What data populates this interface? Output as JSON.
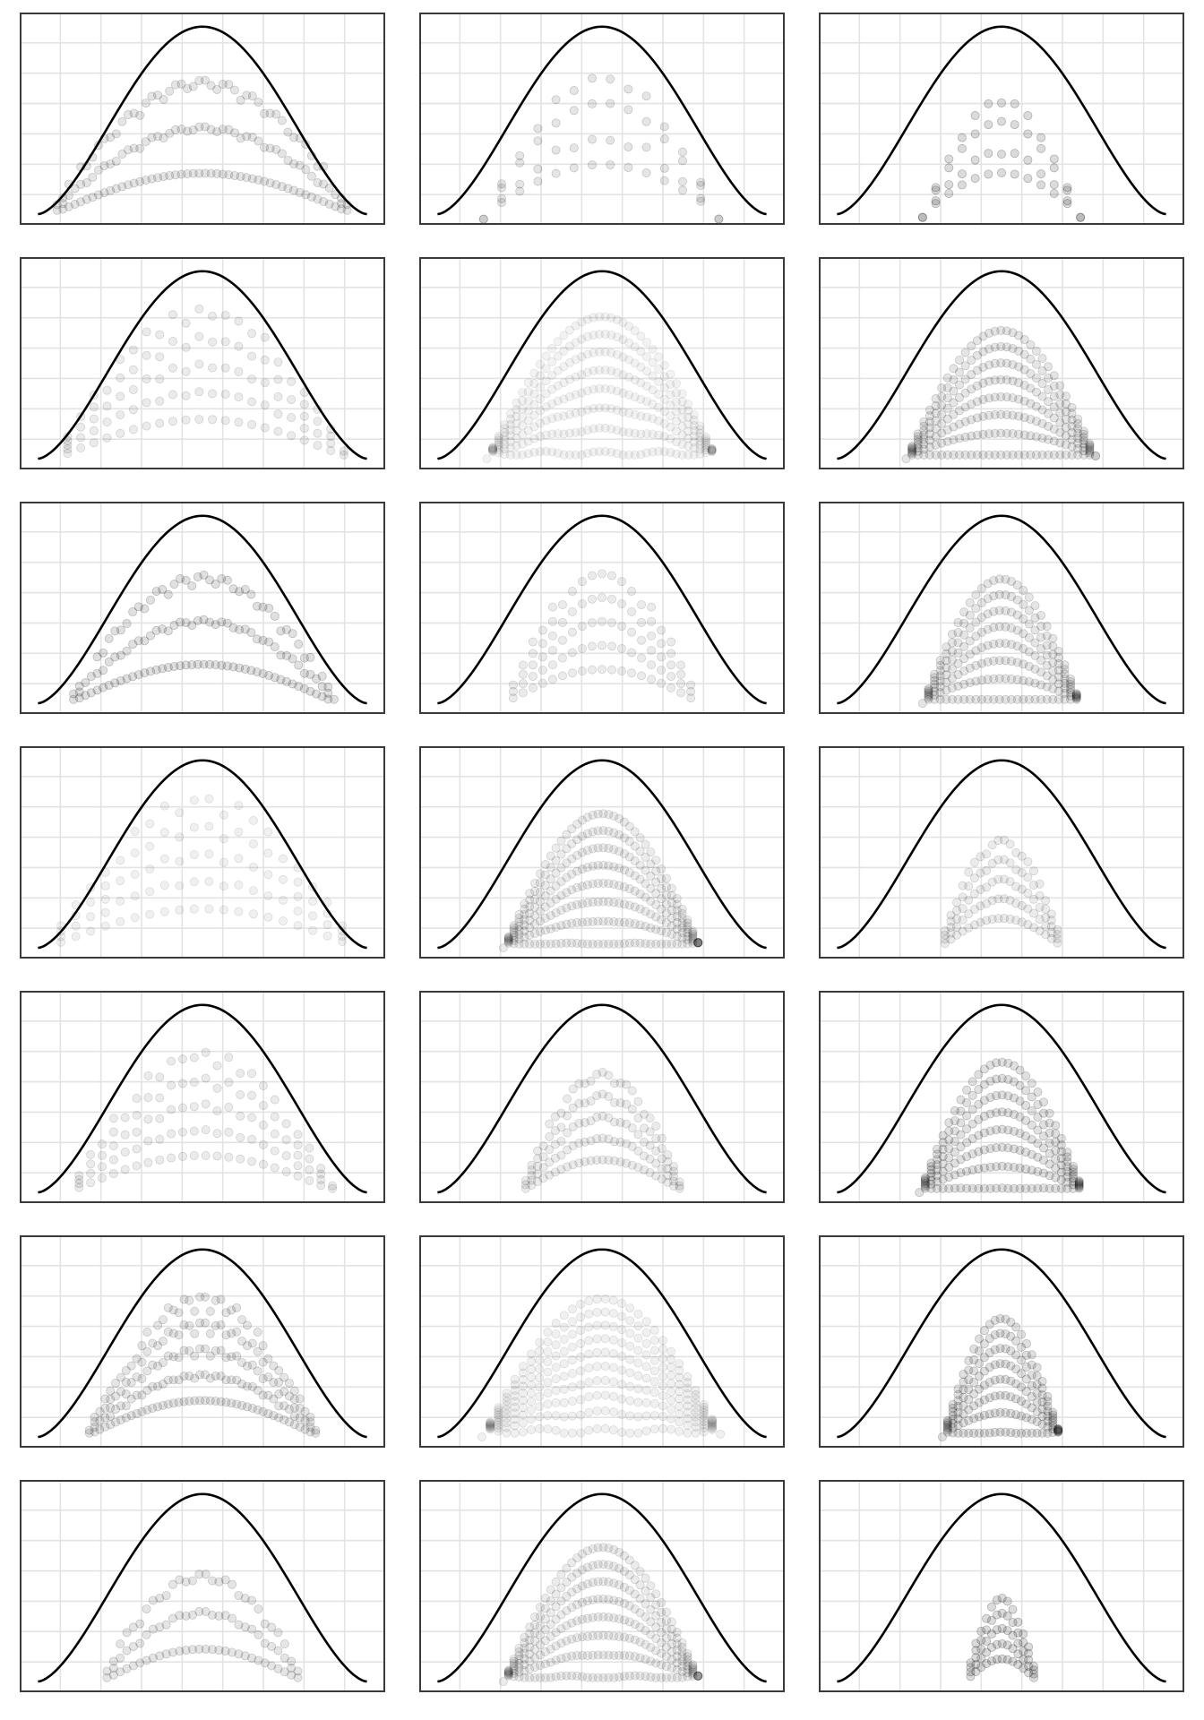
{
  "figure": {
    "rows": 7,
    "cols": 3
  },
  "style": {
    "background": "#ffffff",
    "panel_border": "#3a3a3a",
    "grid_color": "#e3e3e3",
    "curve_color": "#000000",
    "point_color": "#000000",
    "grid": true,
    "legend": "none"
  },
  "chart_data": [
    {
      "type": "scatter",
      "panel": "r1c1",
      "x": [],
      "y": [],
      "xlim": [
        0,
        1
      ],
      "ylim": [
        0,
        1
      ],
      "envelope": {
        "shape": "sine-arch",
        "peak": 0.95
      },
      "points": {
        "spread": 0.92,
        "height": 0.83,
        "cols": 13,
        "rows": 4,
        "step": 0.018,
        "arc_height": 0.22,
        "opacity": 0.1,
        "density": "light",
        "pattern": "arcs"
      }
    },
    {
      "type": "scatter",
      "panel": "r1c2",
      "x": [],
      "y": [],
      "xlim": [
        0,
        1
      ],
      "ylim": [
        0,
        1
      ],
      "envelope": {
        "shape": "sine-arch",
        "peak": 0.95
      },
      "points": {
        "spread": 0.72,
        "height": 0.72,
        "cols": 9,
        "rows": 4,
        "step": 0.055,
        "arc_height": 0.15,
        "opacity": 0.1,
        "density": "light",
        "pattern": "lattice"
      }
    },
    {
      "type": "scatter",
      "panel": "r1c3",
      "x": [],
      "y": [],
      "xlim": [
        0,
        1
      ],
      "ylim": [
        0,
        1
      ],
      "envelope": {
        "shape": "sine-arch",
        "peak": 0.95
      },
      "points": {
        "spread": 0.48,
        "height": 0.6,
        "cols": 9,
        "rows": 4,
        "step": 0.04,
        "arc_height": 0.12,
        "opacity": 0.14,
        "density": "medium",
        "pattern": "lattice"
      }
    },
    {
      "type": "scatter",
      "panel": "r2c1",
      "x": [],
      "y": [],
      "xlim": [
        0,
        1
      ],
      "ylim": [
        0,
        1
      ],
      "envelope": {
        "shape": "sine-arch",
        "peak": 0.95
      },
      "points": {
        "spread": 0.9,
        "height": 0.8,
        "cols": 11,
        "rows": 6,
        "step": 0.04,
        "arc_height": 0.26,
        "opacity": 0.08,
        "density": "light",
        "pattern": "arcs"
      }
    },
    {
      "type": "scatter",
      "panel": "r2c2",
      "x": [],
      "y": [],
      "xlim": [
        0,
        1
      ],
      "ylim": [
        0,
        1
      ],
      "envelope": {
        "shape": "sine-arch",
        "peak": 0.95
      },
      "points": {
        "spread": 0.7,
        "height": 0.72,
        "cols": 5,
        "rows": 8,
        "step": 0.018,
        "arc_height": 0.15,
        "opacity": 0.05,
        "density": "dense",
        "pattern": "filled"
      }
    },
    {
      "type": "scatter",
      "panel": "r2c3",
      "x": [],
      "y": [],
      "xlim": [
        0,
        1
      ],
      "ylim": [
        0,
        1
      ],
      "envelope": {
        "shape": "sine-arch",
        "peak": 0.95
      },
      "points": {
        "spread": 0.58,
        "height": 0.65,
        "cols": 6,
        "rows": 8,
        "step": 0.018,
        "arc_height": 0.08,
        "opacity": 0.1,
        "density": "solid",
        "pattern": "filled"
      }
    },
    {
      "type": "scatter",
      "panel": "r3c1",
      "x": [],
      "y": [],
      "xlim": [
        0,
        1
      ],
      "ylim": [
        0,
        1
      ],
      "envelope": {
        "shape": "sine-arch",
        "peak": 0.95
      },
      "points": {
        "spread": 0.82,
        "height": 0.79,
        "cols": 13,
        "rows": 4,
        "step": 0.018,
        "arc_height": 0.22,
        "opacity": 0.12,
        "density": "light",
        "pattern": "arcs"
      }
    },
    {
      "type": "scatter",
      "panel": "r3c2",
      "x": [],
      "y": [],
      "xlim": [
        0,
        1
      ],
      "ylim": [
        0,
        1
      ],
      "envelope": {
        "shape": "sine-arch",
        "peak": 0.95
      },
      "points": {
        "spread": 0.6,
        "height": 0.69,
        "cols": 3,
        "rows": 6,
        "step": 0.03,
        "arc_height": 0.22,
        "opacity": 0.08,
        "density": "light",
        "pattern": "arcs"
      }
    },
    {
      "type": "scatter",
      "panel": "r3c3",
      "x": [],
      "y": [],
      "xlim": [
        0,
        1
      ],
      "ylim": [
        0,
        1
      ],
      "envelope": {
        "shape": "sine-arch",
        "peak": 0.95
      },
      "points": {
        "spread": 0.48,
        "height": 0.63,
        "cols": 5,
        "rows": 8,
        "step": 0.018,
        "arc_height": 0.08,
        "opacity": 0.1,
        "density": "solid",
        "pattern": "filled"
      }
    },
    {
      "type": "scatter",
      "panel": "r4c1",
      "x": [],
      "y": [],
      "xlim": [
        0,
        1
      ],
      "ylim": [
        0,
        1
      ],
      "envelope": {
        "shape": "sine-arch",
        "peak": 0.95
      },
      "points": {
        "spread": 0.95,
        "height": 0.79,
        "cols": 9,
        "rows": 6,
        "step": 0.045,
        "arc_height": 0.3,
        "opacity": 0.06,
        "density": "light",
        "pattern": "arcs"
      }
    },
    {
      "type": "scatter",
      "panel": "r4c2",
      "x": [],
      "y": [],
      "xlim": [
        0,
        1
      ],
      "ylim": [
        0,
        1
      ],
      "envelope": {
        "shape": "sine-arch",
        "peak": 0.95
      },
      "points": {
        "spread": 0.6,
        "height": 0.68,
        "cols": 4,
        "rows": 8,
        "step": 0.016,
        "arc_height": 0.1,
        "opacity": 0.08,
        "density": "solid",
        "pattern": "filled"
      }
    },
    {
      "type": "scatter",
      "panel": "r4c3",
      "x": [],
      "y": [],
      "xlim": [
        0,
        1
      ],
      "ylim": [
        0,
        1
      ],
      "envelope": {
        "shape": "sine-arch",
        "peak": 0.95
      },
      "points": {
        "spread": 0.38,
        "height": 0.6,
        "cols": 5,
        "rows": 6,
        "step": 0.018,
        "arc_height": 0.12,
        "opacity": 0.08,
        "density": "medium",
        "pattern": "arcs"
      }
    },
    {
      "type": "scatter",
      "panel": "r5c1",
      "x": [],
      "y": [],
      "xlim": [
        0,
        1
      ],
      "ylim": [
        0,
        1
      ],
      "envelope": {
        "shape": "sine-arch",
        "peak": 0.95
      },
      "points": {
        "spread": 0.82,
        "height": 0.75,
        "cols": 11,
        "rows": 6,
        "step": 0.035,
        "arc_height": 0.24,
        "opacity": 0.08,
        "density": "light",
        "pattern": "arcs"
      }
    },
    {
      "type": "scatter",
      "panel": "r5c2",
      "x": [],
      "y": [],
      "xlim": [
        0,
        1
      ],
      "ylim": [
        0,
        1
      ],
      "envelope": {
        "shape": "sine-arch",
        "peak": 0.95
      },
      "points": {
        "spread": 0.5,
        "height": 0.66,
        "cols": 7,
        "rows": 6,
        "step": 0.018,
        "arc_height": 0.15,
        "opacity": 0.08,
        "density": "medium",
        "pattern": "arcs"
      }
    },
    {
      "type": "scatter",
      "panel": "r5c3",
      "x": [],
      "y": [],
      "xlim": [
        0,
        1
      ],
      "ylim": [
        0,
        1
      ],
      "envelope": {
        "shape": "sine-arch",
        "peak": 0.95
      },
      "points": {
        "spread": 0.5,
        "height": 0.66,
        "cols": 5,
        "rows": 8,
        "step": 0.018,
        "arc_height": 0.09,
        "opacity": 0.12,
        "density": "solid",
        "pattern": "filled"
      }
    },
    {
      "type": "scatter",
      "panel": "r6c1",
      "x": [],
      "y": [],
      "xlim": [
        0,
        1
      ],
      "ylim": [
        0,
        1
      ],
      "envelope": {
        "shape": "sine-arch",
        "peak": 0.95
      },
      "points": {
        "spread": 0.72,
        "height": 0.74,
        "cols": 15,
        "rows": 6,
        "step": 0.016,
        "arc_height": 0.28,
        "opacity": 0.1,
        "density": "dense",
        "pattern": "arcs"
      }
    },
    {
      "type": "scatter",
      "panel": "r6c2",
      "x": [],
      "y": [],
      "xlim": [
        0,
        1
      ],
      "ylim": [
        0,
        1
      ],
      "envelope": {
        "shape": "sine-arch",
        "peak": 0.95
      },
      "points": {
        "spread": 0.73,
        "height": 0.7,
        "cols": 5,
        "rows": 10,
        "step": 0.025,
        "arc_height": 0.17,
        "opacity": 0.06,
        "density": "dense",
        "pattern": "filled"
      }
    },
    {
      "type": "scatter",
      "panel": "r6c3",
      "x": [],
      "y": [],
      "xlim": [
        0,
        1
      ],
      "ylim": [
        0,
        1
      ],
      "envelope": {
        "shape": "sine-arch",
        "peak": 0.95
      },
      "points": {
        "spread": 0.36,
        "height": 0.6,
        "cols": 3,
        "rows": 8,
        "step": 0.016,
        "arc_height": 0.1,
        "opacity": 0.12,
        "density": "solid",
        "pattern": "filled"
      }
    },
    {
      "type": "scatter",
      "panel": "r7c1",
      "x": [],
      "y": [],
      "xlim": [
        0,
        1
      ],
      "ylim": [
        0,
        1
      ],
      "envelope": {
        "shape": "sine-arch",
        "peak": 0.95
      },
      "points": {
        "spread": 0.62,
        "height": 0.66,
        "cols": 9,
        "rows": 4,
        "step": 0.02,
        "arc_height": 0.2,
        "opacity": 0.1,
        "density": "light",
        "pattern": "arcs"
      }
    },
    {
      "type": "scatter",
      "panel": "r7c2",
      "x": [],
      "y": [],
      "xlim": [
        0,
        1
      ],
      "ylim": [
        0,
        1
      ],
      "envelope": {
        "shape": "sine-arch",
        "peak": 0.95
      },
      "points": {
        "spread": 0.6,
        "height": 0.68,
        "cols": 4,
        "rows": 8,
        "step": 0.016,
        "arc_height": 0.12,
        "opacity": 0.08,
        "density": "solid",
        "pattern": "filled"
      }
    },
    {
      "type": "scatter",
      "panel": "r7c3",
      "x": [],
      "y": [],
      "xlim": [
        0,
        1
      ],
      "ylim": [
        0,
        1
      ],
      "envelope": {
        "shape": "sine-arch",
        "peak": 0.95
      },
      "points": {
        "spread": 0.22,
        "height": 0.46,
        "cols": 3,
        "rows": 6,
        "step": 0.016,
        "arc_height": 0.1,
        "opacity": 0.14,
        "density": "medium",
        "pattern": "arcs"
      }
    }
  ]
}
